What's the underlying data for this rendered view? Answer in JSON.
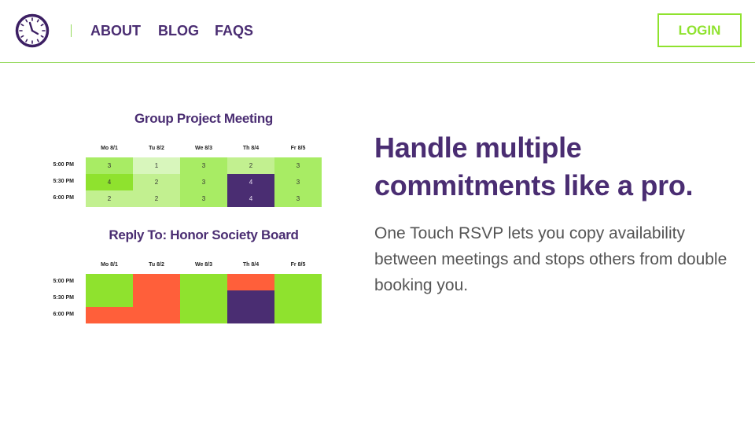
{
  "header": {
    "logo_icon": "clock-icon",
    "nav": [
      "ABOUT",
      "BLOG",
      "FAQS"
    ],
    "login_label": "LOGIN"
  },
  "colors": {
    "brand_purple": "#4a2d72",
    "brand_green": "#8fe22e",
    "busy_orange": "#ff5f3a"
  },
  "tables": [
    {
      "title": "Group Project Meeting",
      "days": [
        "Mo 8/1",
        "Tu 8/2",
        "We 8/3",
        "Th 8/4",
        "Fr 8/5"
      ],
      "times": [
        "5:00 PM",
        "5:30 PM",
        "6:00 PM"
      ],
      "rows": [
        [
          {
            "v": "3",
            "c": "#a8ec64"
          },
          {
            "v": "1",
            "c": "#d8f6bc"
          },
          {
            "v": "3",
            "c": "#a8ec64"
          },
          {
            "v": "2",
            "c": "#c2f090"
          },
          {
            "v": "3",
            "c": "#a8ec64"
          }
        ],
        [
          {
            "v": "4",
            "c": "#8fe22e"
          },
          {
            "v": "2",
            "c": "#c2f090"
          },
          {
            "v": "3",
            "c": "#a8ec64"
          },
          {
            "v": "4",
            "c": "#4a2d72"
          },
          {
            "v": "3",
            "c": "#a8ec64"
          }
        ],
        [
          {
            "v": "2",
            "c": "#c2f090"
          },
          {
            "v": "2",
            "c": "#c2f090"
          },
          {
            "v": "3",
            "c": "#a8ec64"
          },
          {
            "v": "4",
            "c": "#4a2d72"
          },
          {
            "v": "3",
            "c": "#a8ec64"
          }
        ]
      ]
    },
    {
      "title": "Reply To: Honor Society Board",
      "days": [
        "Mo 8/1",
        "Tu 8/2",
        "We 8/3",
        "Th 8/4",
        "Fr 8/5"
      ],
      "times": [
        "5:00 PM",
        "5:30 PM",
        "6:00 PM"
      ],
      "rows": [
        [
          {
            "v": "",
            "c": "#8fe22e"
          },
          {
            "v": "",
            "c": "#ff5f3a"
          },
          {
            "v": "",
            "c": "#8fe22e"
          },
          {
            "v": "",
            "c": "#ff5f3a"
          },
          {
            "v": "",
            "c": "#8fe22e"
          }
        ],
        [
          {
            "v": "",
            "c": "#8fe22e"
          },
          {
            "v": "",
            "c": "#ff5f3a"
          },
          {
            "v": "",
            "c": "#8fe22e"
          },
          {
            "v": "",
            "c": "#4a2d72"
          },
          {
            "v": "",
            "c": "#8fe22e"
          }
        ],
        [
          {
            "v": "",
            "c": "#ff5f3a"
          },
          {
            "v": "",
            "c": "#ff5f3a"
          },
          {
            "v": "",
            "c": "#8fe22e"
          },
          {
            "v": "",
            "c": "#4a2d72"
          },
          {
            "v": "",
            "c": "#8fe22e"
          }
        ]
      ]
    }
  ],
  "hero": {
    "headline": "Handle multiple commitments like a pro.",
    "description": "One Touch RSVP lets you copy availability between meetings and stops others from double booking you."
  }
}
